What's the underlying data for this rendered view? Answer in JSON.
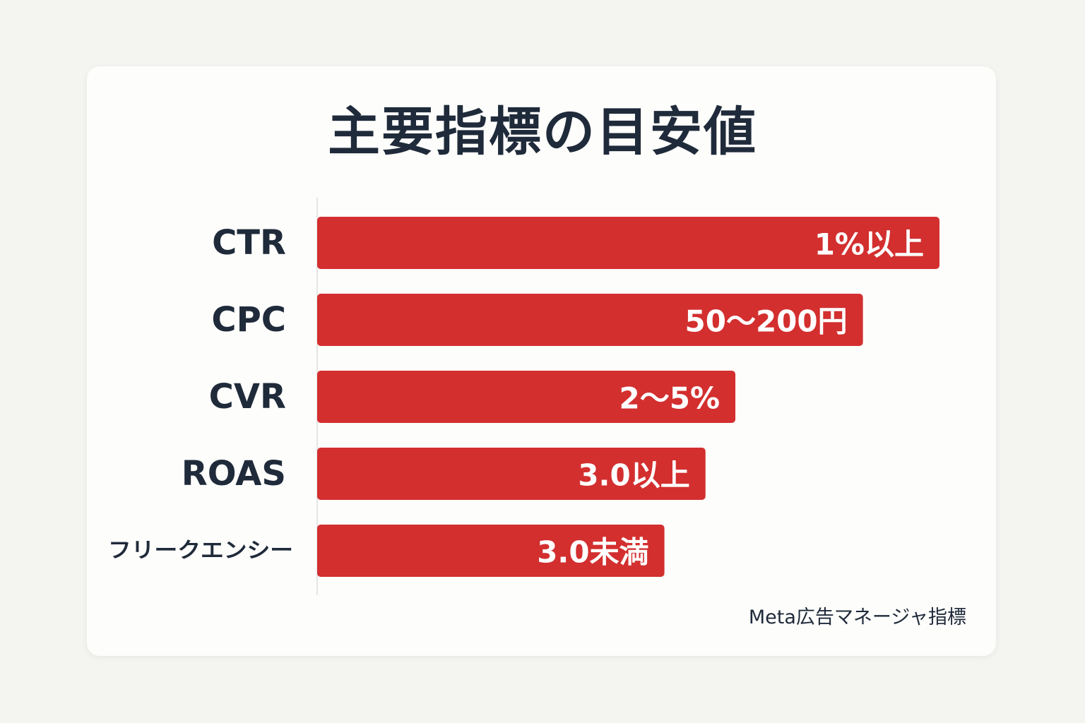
{
  "title": "主要指標の目安値",
  "footer_note": "Meta広告マネージャ指標",
  "colors": {
    "bar": "#d32f2f",
    "text": "#1f2a3a",
    "axis": "#dddddd",
    "card": "#fdfdfb",
    "background": "#f4f4f1"
  },
  "chart_data": {
    "type": "bar",
    "orientation": "horizontal",
    "title": "主要指標の目安値",
    "categories": [
      "CTR",
      "CPC",
      "CVR",
      "ROAS",
      "フリークエンシー"
    ],
    "values": [
      100,
      87.7,
      67.2,
      62.4,
      55.8
    ],
    "data_labels": [
      "1%以上",
      "50～200円",
      "2～5%",
      "3.0以上",
      "3.0未満"
    ],
    "xlim": [
      0,
      100
    ],
    "xlabel": "",
    "ylabel": "",
    "grid": false,
    "legend": "none"
  }
}
